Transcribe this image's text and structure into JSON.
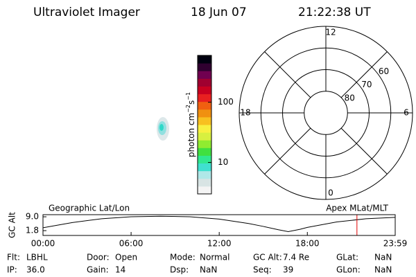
{
  "header": {
    "title": "Ultraviolet Imager",
    "date": "18 Jun 07",
    "time": "21:22:38 UT"
  },
  "colorbar": {
    "label": [
      "photon cm",
      "−2",
      "s",
      "−1"
    ],
    "scale": "log",
    "lim": [
      3,
      600
    ],
    "ticks": [
      10,
      100
    ],
    "colors": [
      "#f4f4f4",
      "#d8e4e4",
      "#b0e8e8",
      "#40e0d0",
      "#30e890",
      "#40e040",
      "#90ec30",
      "#d8f040",
      "#f8f040",
      "#f8c020",
      "#f09010",
      "#f06010",
      "#e82020",
      "#c80020",
      "#a00030",
      "#700050",
      "#300030",
      "#000010"
    ]
  },
  "polar": {
    "rlim": [
      90,
      50
    ],
    "rings": [
      80,
      70,
      60
    ],
    "hour_labels": [
      12,
      6,
      0,
      18
    ]
  },
  "chart_data": {
    "type": "line",
    "title_left": "Geographic Lat/Lon",
    "title_right": "Apex MLat/MLT",
    "ylabel": "GC Alt",
    "x": [
      0,
      2,
      4,
      6,
      8,
      10,
      12,
      14,
      15,
      16,
      16.7,
      17.5,
      18,
      20,
      22,
      23.983
    ],
    "values": [
      3.3,
      6.0,
      8.0,
      9.0,
      9.3,
      9.0,
      7.8,
      5.5,
      4.0,
      2.3,
      1.3,
      2.5,
      3.5,
      6.3,
      8.0,
      8.7
    ],
    "xlim": [
      0,
      23.983
    ],
    "ylim": [
      -0.7,
      10.1
    ],
    "xticks": [
      {
        "value": 0,
        "label": "00:00"
      },
      {
        "value": 6,
        "label": "06:00"
      },
      {
        "value": 12,
        "label": "12:00"
      },
      {
        "value": 18,
        "label": "18:00"
      },
      {
        "value": 23.983,
        "label": "23:59"
      }
    ],
    "yticks": [
      {
        "value": 9,
        "label": "9.0"
      },
      {
        "value": 1.8,
        "label": "1.8"
      }
    ],
    "color": "#000000",
    "marker": {
      "value": 21.378,
      "color": "#e00000"
    }
  },
  "footer": {
    "rows": [
      [
        [
          "Flt:",
          "LBHL"
        ],
        [
          "Door:",
          "Open"
        ],
        [
          "Mode:",
          "Normal"
        ],
        [
          "GC Alt:",
          "7.4 Re"
        ],
        [
          "GLat:",
          "NaN"
        ]
      ],
      [
        [
          "IP:",
          "36.0"
        ],
        [
          "Gain:",
          "14"
        ],
        [
          "Dsp:",
          "NaN"
        ],
        [
          "Seq:",
          "39"
        ],
        [
          "GLon:",
          "NaN"
        ]
      ]
    ]
  }
}
